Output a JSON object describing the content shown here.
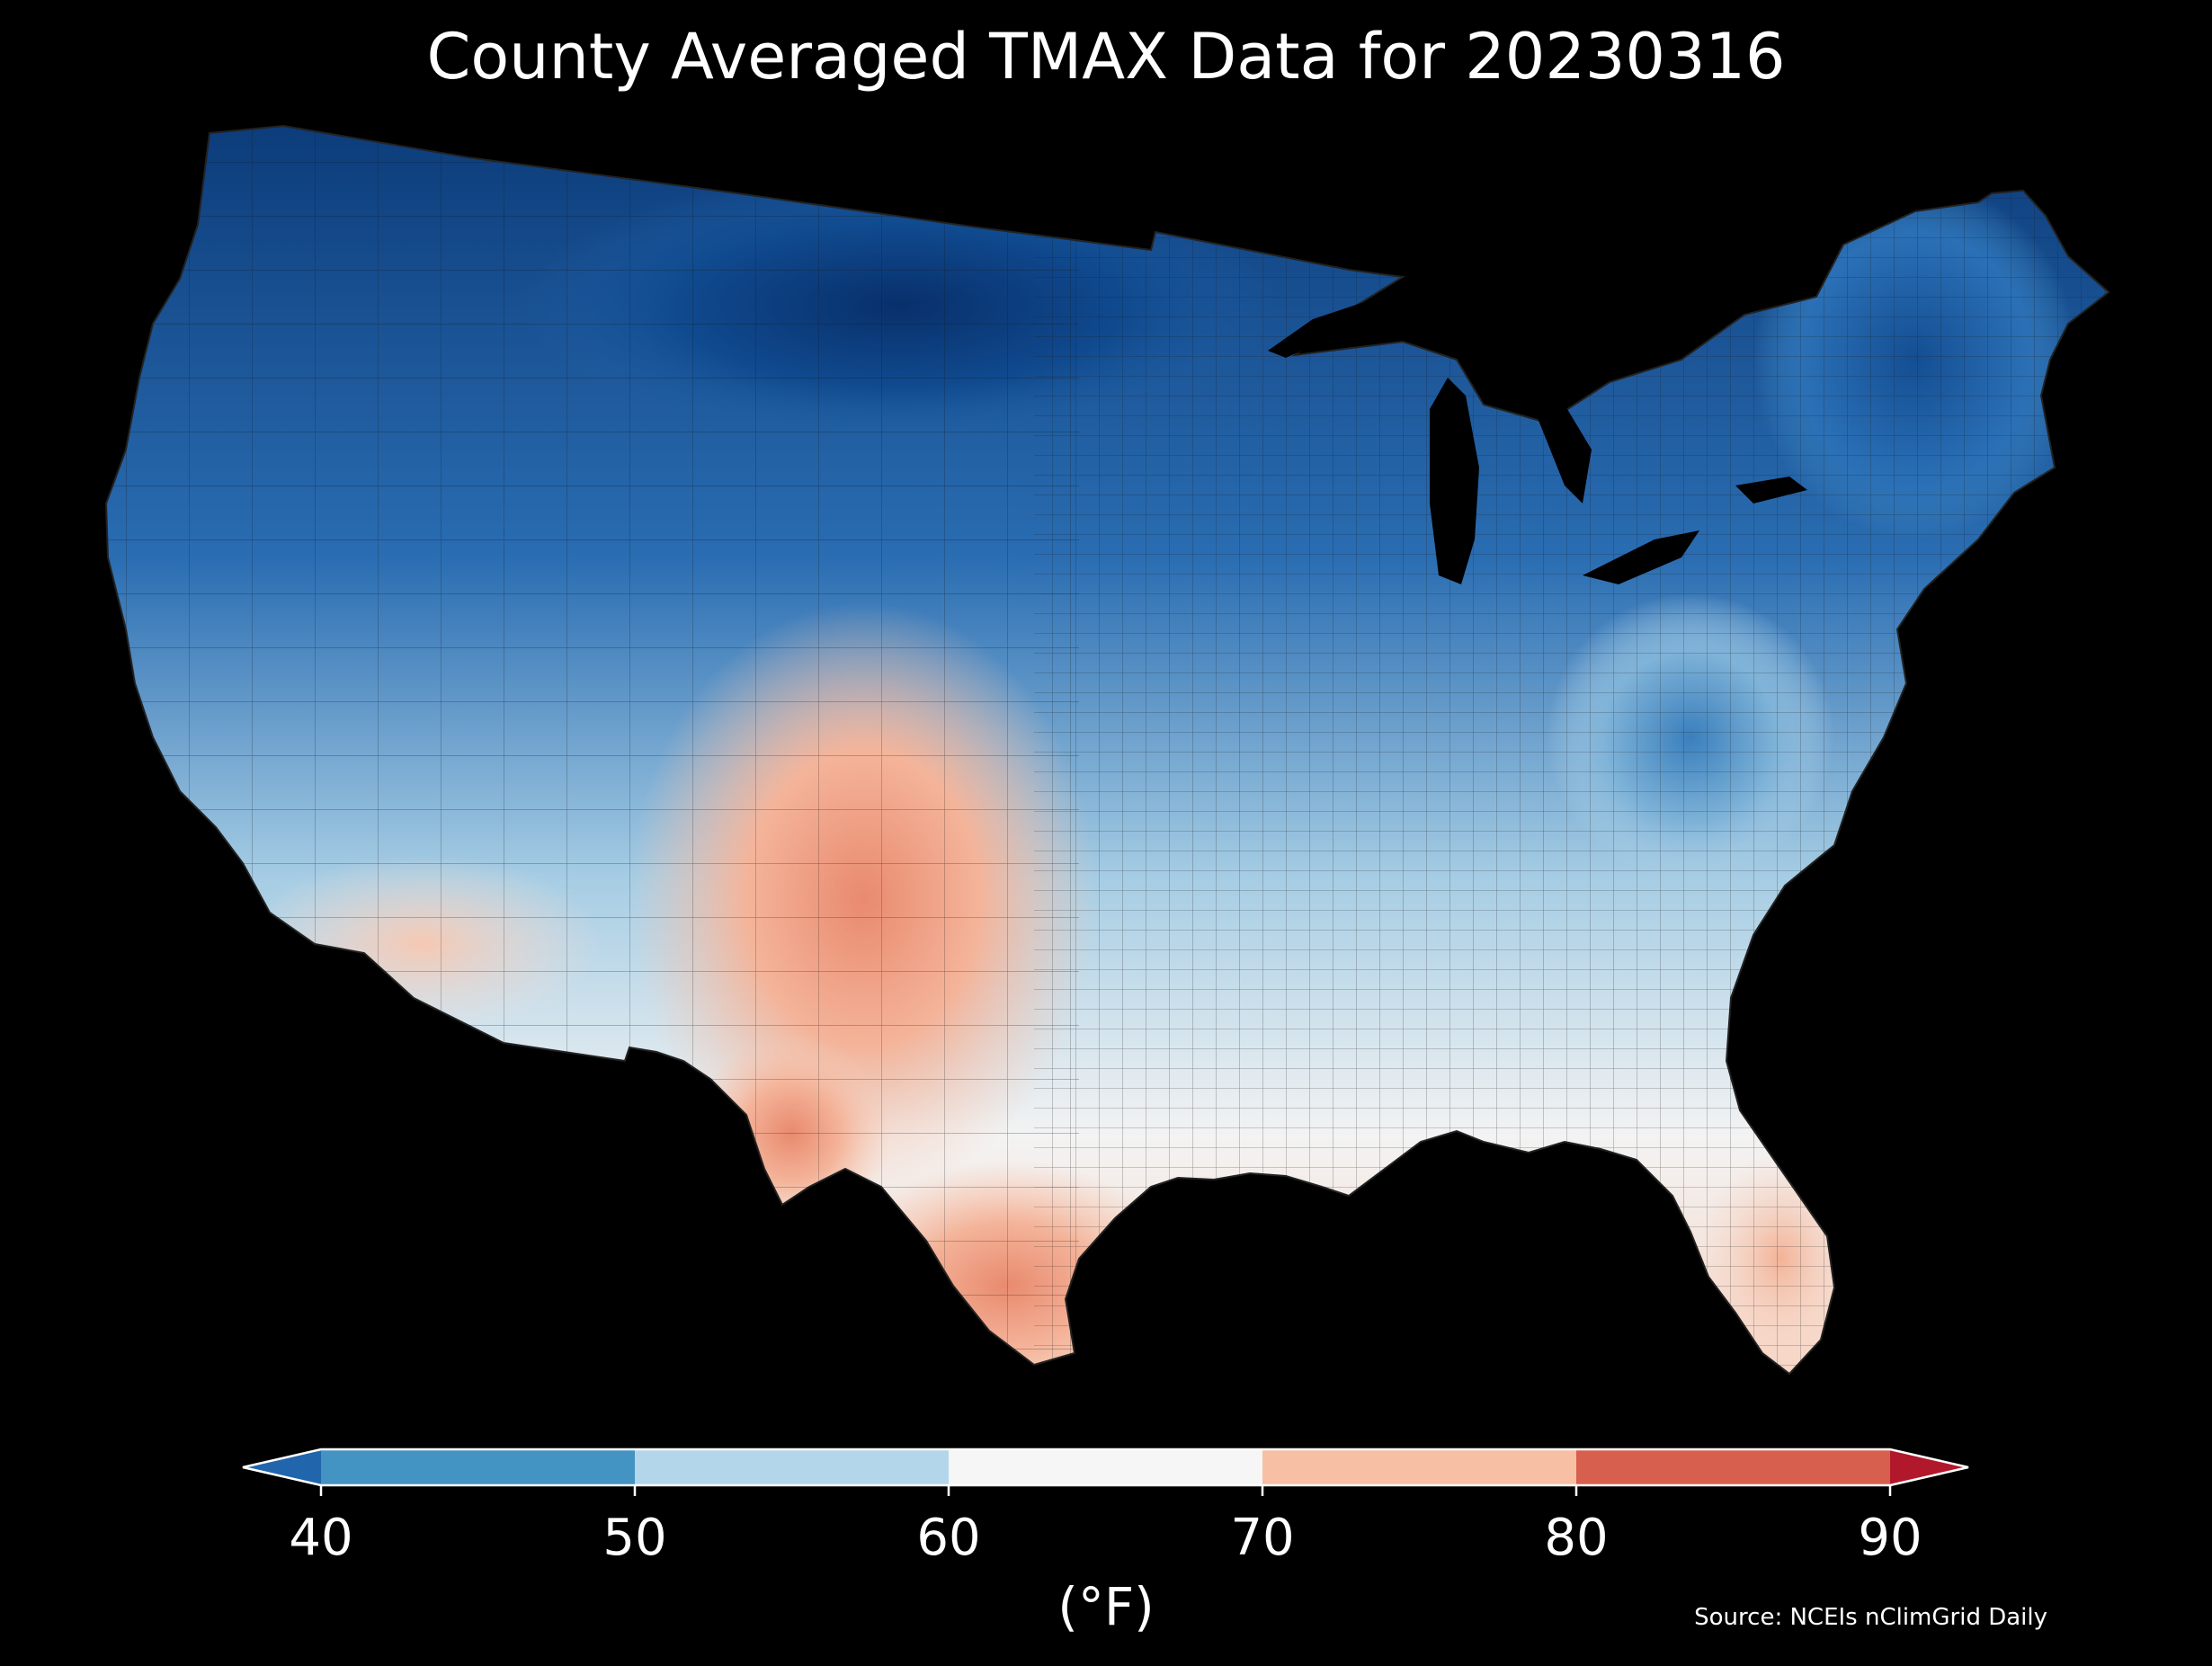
{
  "title": "County Averaged TMAX Data for 20230316",
  "colorbar": {
    "units_label": "(°F)",
    "tick_labels": [
      "40",
      "50",
      "60",
      "70",
      "80",
      "90"
    ],
    "ticks": [
      40,
      50,
      60,
      70,
      80,
      90
    ],
    "bins": [
      {
        "from": 40,
        "to": 50,
        "color": "#4393c3"
      },
      {
        "from": 50,
        "to": 60,
        "color": "#b4d6ea"
      },
      {
        "from": 60,
        "to": 70,
        "color": "#f6f6f6"
      },
      {
        "from": 70,
        "to": 80,
        "color": "#f7bfa3"
      },
      {
        "from": 80,
        "to": 90,
        "color": "#d6604d"
      }
    ],
    "under_color": "#2166ac",
    "over_color": "#b2182b"
  },
  "source": "Source: NCEIs nClimGrid Daily",
  "map": {
    "subject": "Contiguous United States county-level maximum temperature",
    "palette": {
      "cold_deep": "#08306b",
      "cold": "#2166ac",
      "cool": "#4393c3",
      "mild": "#b4d6ea",
      "neutral": "#f6f6f6",
      "warm": "#f7bfa3",
      "hot": "#d6604d",
      "background": "#000000"
    }
  }
}
